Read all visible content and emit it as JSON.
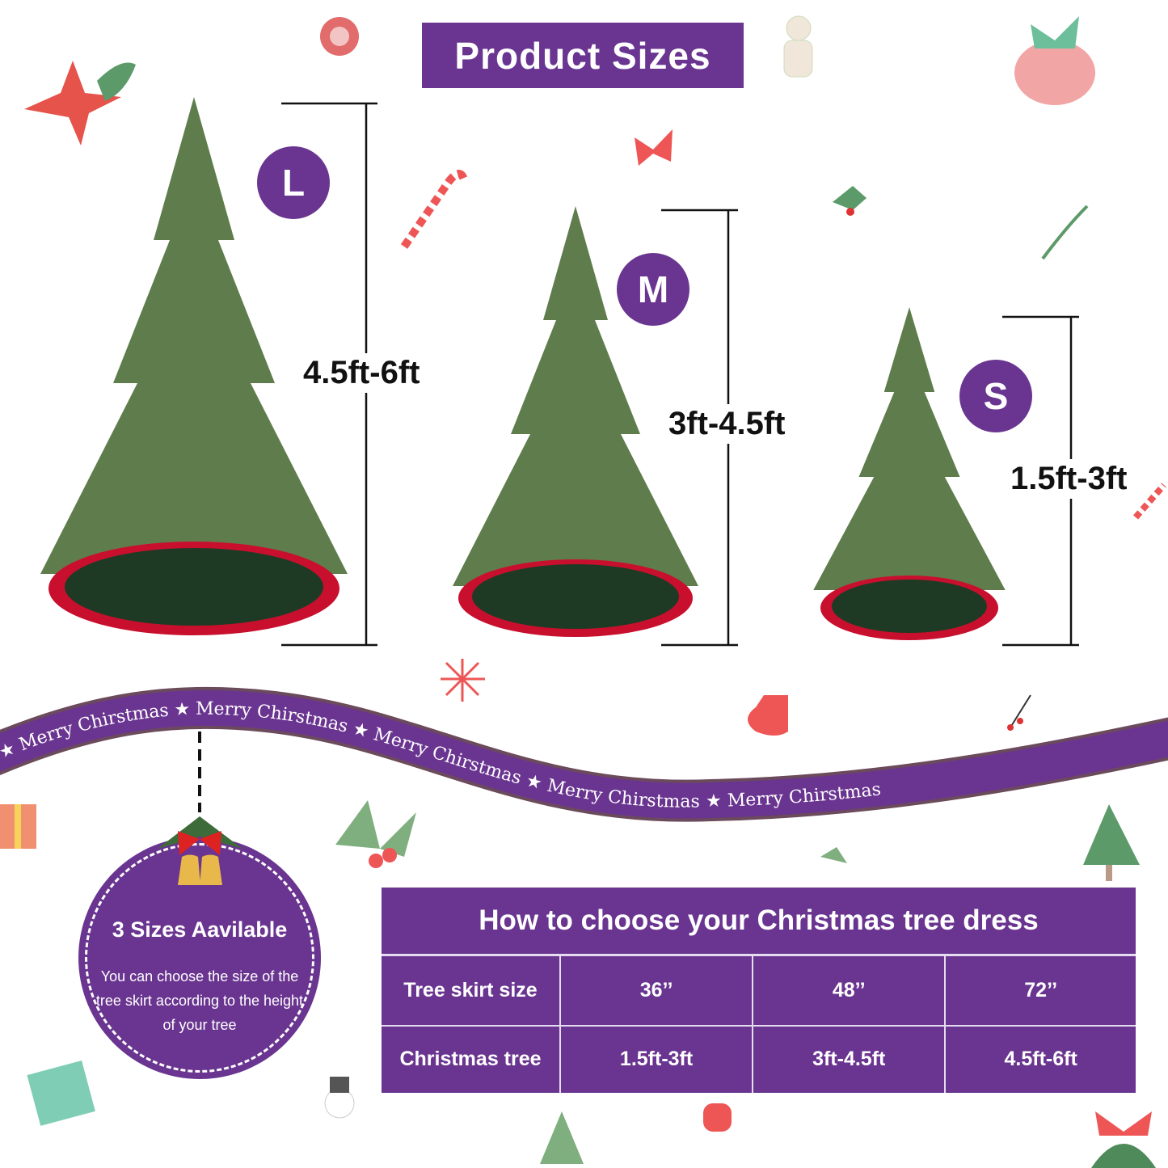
{
  "title": "Product Sizes",
  "sizes": [
    {
      "badge": "L",
      "height_range": "4.5ft-6ft"
    },
    {
      "badge": "M",
      "height_range": "3ft-4.5ft"
    },
    {
      "badge": "S",
      "height_range": "1.5ft-3ft"
    }
  ],
  "ribbon": {
    "items": [
      "Merry Chirstmas",
      "Merry Chirstmas",
      "Merry Chirstmas",
      "Merry Chirstmas",
      "Merry Chirstmas"
    ],
    "color": "#6a3590"
  },
  "badge": {
    "title": "3 Sizes Aavilable",
    "text": "You can choose the size of the tree skirt according to the height of your tree"
  },
  "table": {
    "title": "How to choose your Christmas tree dress",
    "rows": [
      {
        "label": "Tree skirt size",
        "values": [
          "36’’",
          "48’’",
          "72’’"
        ]
      },
      {
        "label": "Christmas tree",
        "values": [
          "1.5ft-3ft",
          "3ft-4.5ft",
          "4.5ft-6ft"
        ]
      }
    ]
  },
  "colors": {
    "purple": "#6a3590",
    "skirt_green": "#1f3a24",
    "skirt_red": "#c8102e",
    "tree_green": "#5f7d4c"
  }
}
